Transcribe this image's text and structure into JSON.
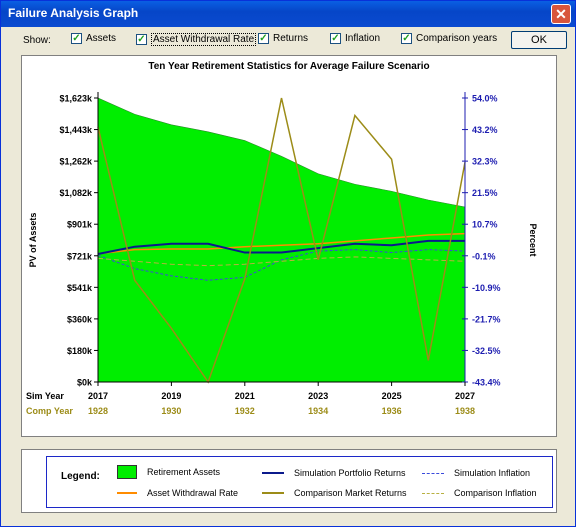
{
  "window": {
    "title": "Failure Analysis Graph",
    "close_glyph": "✕"
  },
  "toolbar": {
    "show_label": "Show:",
    "checkboxes": [
      {
        "label": "Assets",
        "checked": true
      },
      {
        "label": "Asset Withdrawal Rate",
        "checked": true
      },
      {
        "label": "Returns",
        "checked": true
      },
      {
        "label": "Inflation",
        "checked": true
      },
      {
        "label": "Comparison years",
        "checked": true
      }
    ],
    "check_glyph": "✓",
    "ok_label": "OK"
  },
  "chart_data": {
    "type": "area",
    "title": "Ten Year Retirement Statistics for Average Failure Scenario",
    "ylabel_left": "PV of Assets",
    "ylabel_right": "Percent",
    "left_ticks": [
      "$0k",
      "$180k",
      "$360k",
      "$541k",
      "$721k",
      "$901k",
      "$1,082k",
      "$1,262k",
      "$1,443k",
      "$1,623k"
    ],
    "right_ticks": [
      "-43.4%",
      "-32.5%",
      "-21.7%",
      "-10.9%",
      "-0.1%",
      "10.7%",
      "21.5%",
      "32.3%",
      "43.2%",
      "54.0%"
    ],
    "ylim_left": [
      0,
      1623
    ],
    "ylim_right": [
      -43.4,
      54.0
    ],
    "x_row_labels": {
      "sim": "Sim Year",
      "comp": "Comp Year"
    },
    "sim_year_ticks": [
      "2017",
      "2019",
      "2021",
      "2023",
      "2025",
      "2027"
    ],
    "comp_year_ticks": [
      "1928",
      "1930",
      "1932",
      "1934",
      "1936",
      "1938"
    ],
    "x": [
      2017,
      2018,
      2019,
      2020,
      2021,
      2022,
      2023,
      2024,
      2025,
      2026,
      2027
    ],
    "colors": {
      "assets": "#00ee00",
      "withdrawal": "#ff8c00",
      "sim_returns": "#0b1a8c",
      "sim_inflation": "#3a4adc",
      "comp_returns": "#9c8c18",
      "comp_inflation": "#b8b040",
      "axis_right": "#1c1cb0",
      "comp_year_text": "#9c8c18"
    },
    "series": [
      {
        "name": "Retirement Assets",
        "values": [
          1623,
          1530,
          1470,
          1430,
          1380,
          1290,
          1190,
          1130,
          1090,
          1040,
          1000
        ]
      },
      {
        "name": "Asset Withdrawal Rate",
        "values": [
          0.6,
          2.0,
          2.2,
          2.2,
          3.0,
          3.5,
          4.0,
          5.0,
          6.0,
          7.0,
          7.5
        ]
      },
      {
        "name": "Simulation Portfolio Returns",
        "values": [
          0.5,
          3.0,
          4.0,
          4.0,
          1.0,
          1.0,
          2.5,
          4.0,
          3.5,
          5.0,
          5.0
        ]
      },
      {
        "name": "Simulation Inflation",
        "values": [
          0.0,
          -4.5,
          -7.0,
          -8.5,
          -7.5,
          -1.5,
          1.5,
          2.0,
          1.0,
          2.0,
          1.5
        ]
      },
      {
        "name": "Comparison Market Returns",
        "values": [
          44.0,
          -8.5,
          -25.0,
          -43.4,
          -8.0,
          54.0,
          -1.5,
          48.0,
          33.0,
          -36.0,
          32.0
        ]
      },
      {
        "name": "Comparison Inflation",
        "values": [
          -1.0,
          -2.0,
          -3.0,
          -3.5,
          -3.0,
          -2.0,
          -1.0,
          -0.5,
          -1.0,
          -1.5,
          -2.0
        ]
      }
    ]
  },
  "legend": {
    "title": "Legend:",
    "items": [
      "Retirement Assets",
      "Simulation Portfolio Returns",
      "Simulation Inflation",
      "Asset Withdrawal Rate",
      "Comparison Market Returns",
      "Comparison Inflation"
    ]
  }
}
